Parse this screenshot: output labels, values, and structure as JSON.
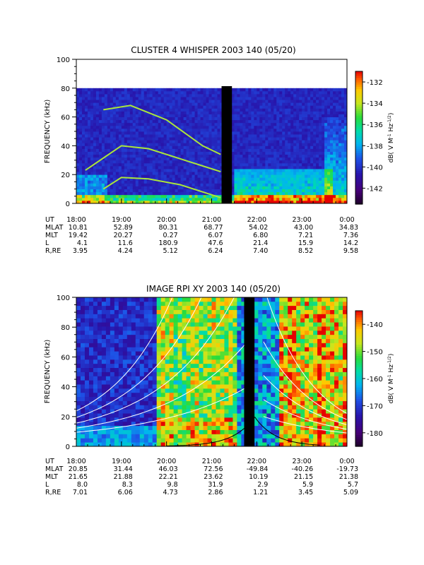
{
  "chart_data": [
    {
      "type": "heatmap",
      "title": "CLUSTER 4 WHISPER 2003 140 (05/20)",
      "ylabel": "FREQUENCY (kHz)",
      "ylim": [
        0,
        100
      ],
      "yticks": [
        "0",
        "20",
        "40",
        "60",
        "80",
        "100"
      ],
      "data_ceiling_khz": 80,
      "colorbar": {
        "label": "dB( V M⁻¹ Hz⁻¹ᐟ²)",
        "label_parts": [
          "dB( V M",
          "-1",
          " Hz",
          "-1/2",
          ")"
        ],
        "range": [
          -143.5,
          -131
        ],
        "ticks": [
          "-132",
          "-134",
          "-136",
          "-138",
          "-140",
          "-142"
        ],
        "tick_values": [
          -132,
          -134,
          -136,
          -138,
          -140,
          -142
        ]
      },
      "time_range_hours": [
        18,
        24
      ],
      "gap_hours": [
        21.22,
        21.45
      ],
      "emission_lines": [
        {
          "name": "",
          "points": [
            [
              18.6,
              10
            ],
            [
              19.0,
              18
            ],
            [
              19.6,
              17
            ],
            [
              20.3,
              13
            ],
            [
              21.0,
              6
            ],
            [
              21.2,
              4
            ]
          ]
        },
        {
          "name": "",
          "points": [
            [
              18.2,
              23
            ],
            [
              19.0,
              40
            ],
            [
              19.6,
              38
            ],
            [
              20.4,
              30
            ],
            [
              21.0,
              24
            ],
            [
              21.2,
              22
            ]
          ]
        },
        {
          "name": "",
          "points": [
            [
              18.6,
              65
            ],
            [
              19.2,
              68
            ],
            [
              20.0,
              58
            ],
            [
              20.8,
              40
            ],
            [
              21.2,
              34
            ]
          ]
        }
      ],
      "ephemeris": {
        "row_labels": [
          "UT",
          "MLAT",
          "MLT",
          "L",
          "R,RE"
        ],
        "columns": [
          [
            "18:00",
            "10.81",
            "19.42",
            "4.1",
            "3.95"
          ],
          [
            "19:00",
            "52.89",
            "20.27",
            "11.6",
            "4.24"
          ],
          [
            "20:00",
            "80.31",
            "0.27",
            "180.9",
            "5.12"
          ],
          [
            "21:00",
            "68.77",
            "6.07",
            "47.6",
            "6.24"
          ],
          [
            "22:00",
            "54.02",
            "6.80",
            "21.4",
            "7.40"
          ],
          [
            "23:00",
            "43.00",
            "7.21",
            "15.9",
            "8.52"
          ],
          [
            "0:00",
            "34.83",
            "7.36",
            "14.2",
            "9.58"
          ]
        ]
      }
    },
    {
      "type": "heatmap",
      "title": "IMAGE RPI XY 2003 140 (05/20)",
      "ylabel": "FREQUENCY (kHz)",
      "ylim": [
        0,
        100
      ],
      "yticks": [
        "0",
        "20",
        "40",
        "60",
        "80",
        "100"
      ],
      "colorbar": {
        "label": "dB( V M⁻¹ Hz⁻¹ᐟ²)",
        "label_parts": [
          "dB( V M",
          "-1",
          " Hz",
          "-1/2",
          ")"
        ],
        "range": [
          -185,
          -135
        ],
        "ticks": [
          "-140",
          "-150",
          "-160",
          "-170",
          "-180"
        ],
        "tick_values": [
          -140,
          -150,
          -160,
          -170,
          -180
        ]
      },
      "time_range_hours": [
        18,
        24
      ],
      "gap_hours": [
        21.72,
        21.95
      ],
      "ephemeris": {
        "row_labels": [
          "UT",
          "MLAT",
          "MLT",
          "L",
          "R,RE"
        ],
        "columns": [
          [
            "18:00",
            "20.85",
            "21.65",
            "8.0",
            "7.01"
          ],
          [
            "19:00",
            "31.44",
            "21.88",
            "8.3",
            "6.06"
          ],
          [
            "20:00",
            "46.03",
            "22.21",
            "9.8",
            "4.73"
          ],
          [
            "21:00",
            "72.56",
            "23.62",
            "31.9",
            "2.86"
          ],
          [
            "22:00",
            "-49.84",
            "10.19",
            "2.9",
            "1.21"
          ],
          [
            "23:00",
            "-40.26",
            "21.15",
            "5.9",
            "3.45"
          ],
          [
            "0:00",
            "-19.73",
            "21.38",
            "5.7",
            "5.09"
          ]
        ]
      }
    }
  ]
}
